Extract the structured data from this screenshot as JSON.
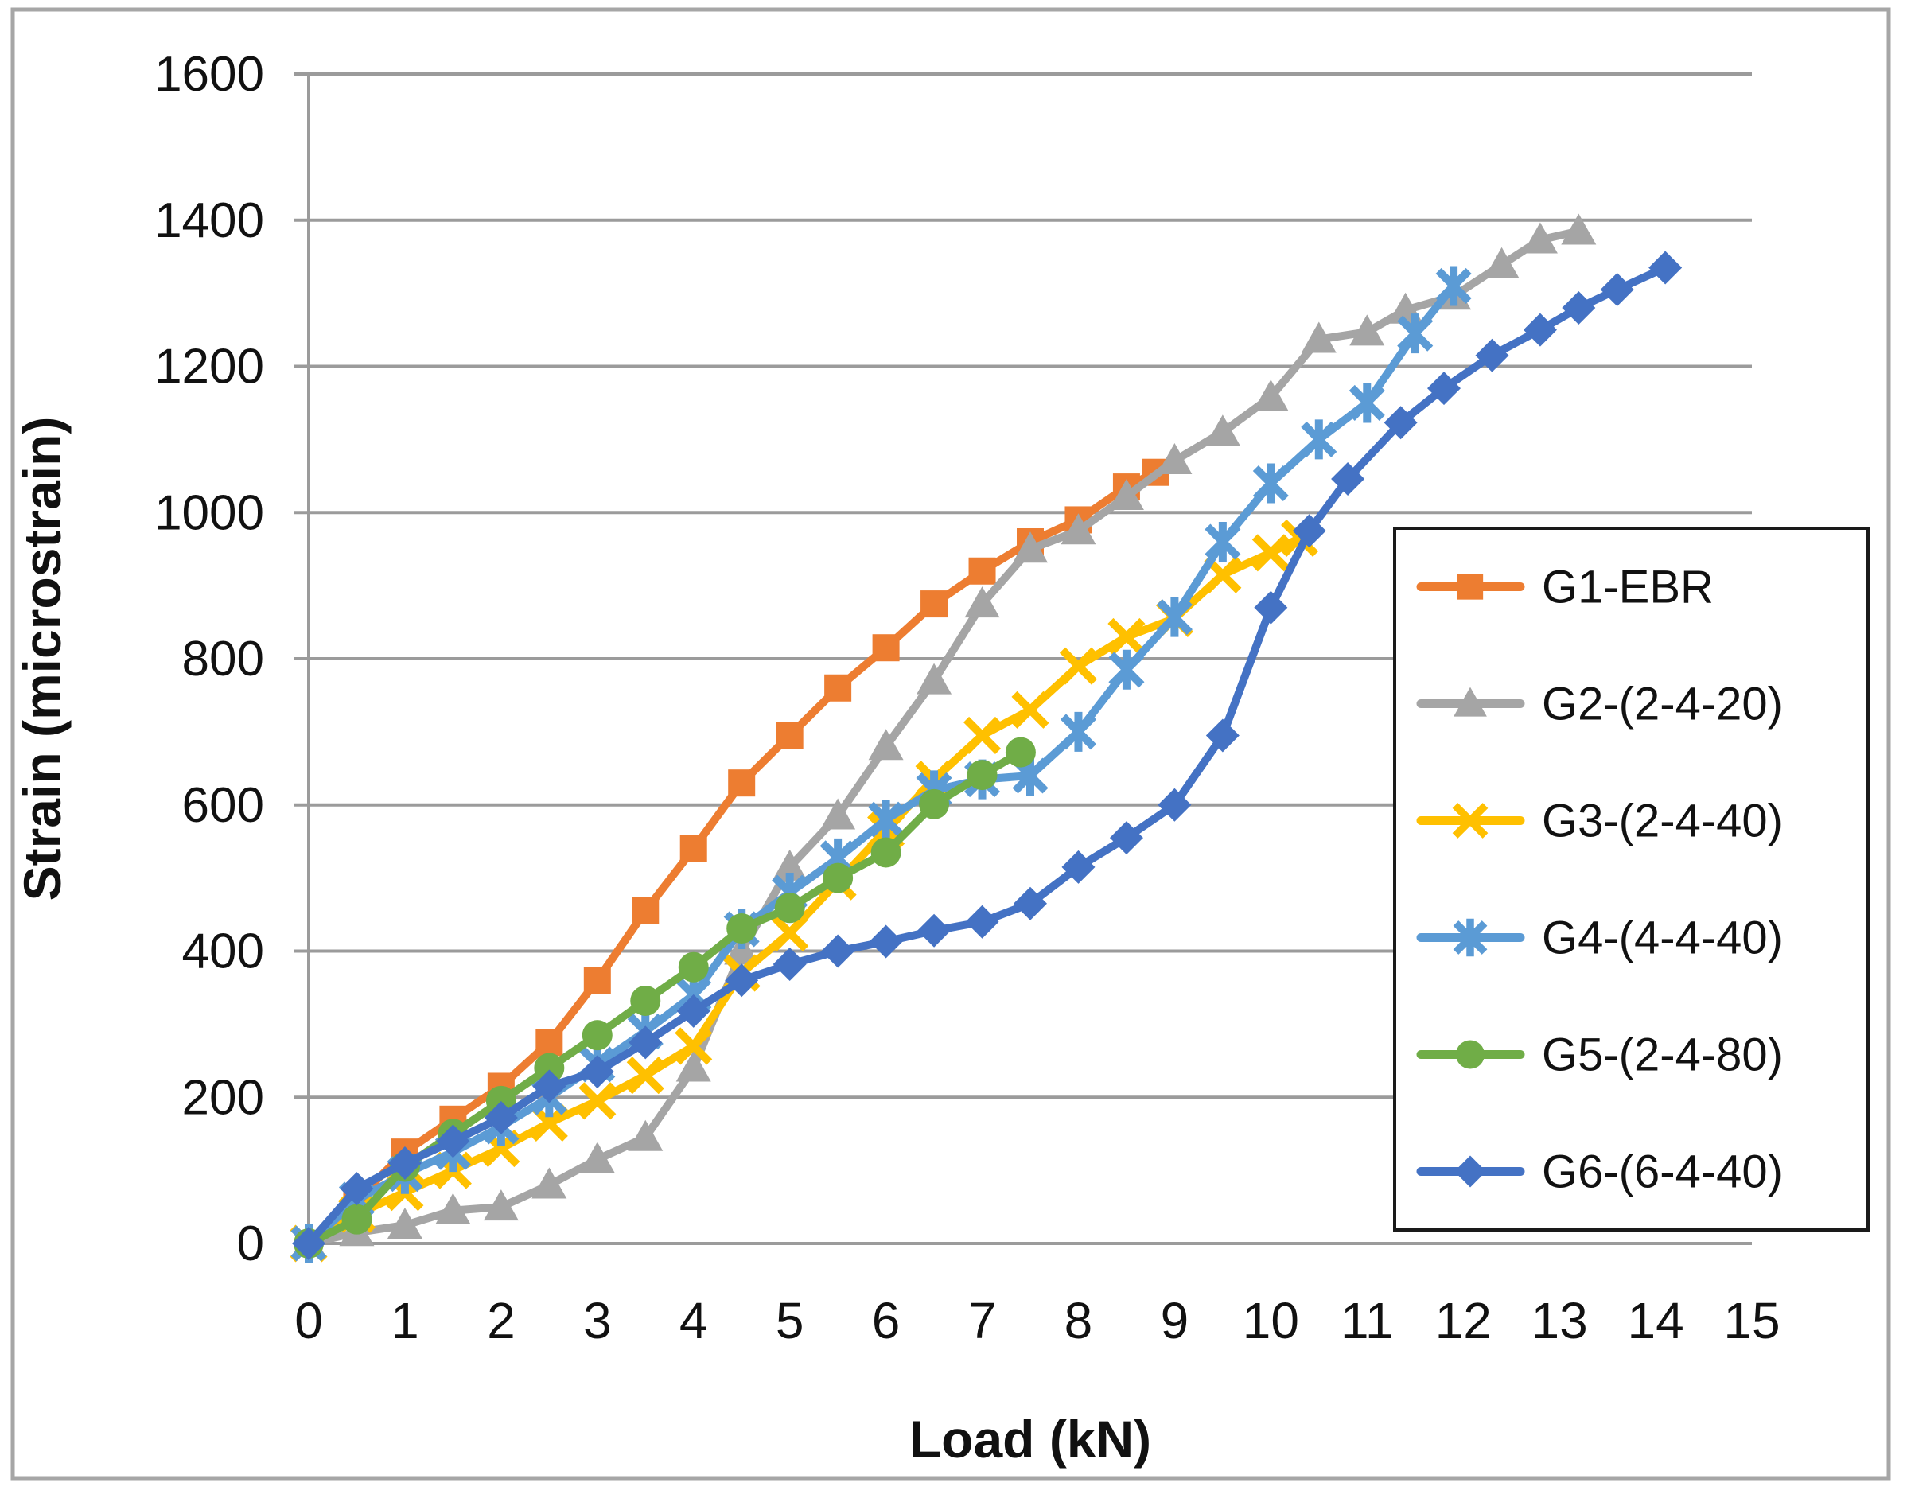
{
  "figure": {
    "background": "#ffffff",
    "outer_border_color": "#a6a6a6",
    "axis_color": "#9b9b9b",
    "grid_color": "#9b9b9b",
    "text_color": "#111111",
    "legend_border_color": "#1a1a1a"
  },
  "chart_data": {
    "type": "line",
    "title": "",
    "xlabel": "Load (kN)",
    "ylabel": "Strain (microstrain)",
    "xlim": [
      0,
      15
    ],
    "ylim": [
      0,
      1600
    ],
    "x_ticks": [
      0,
      1,
      2,
      3,
      4,
      5,
      6,
      7,
      8,
      9,
      10,
      11,
      12,
      13,
      14,
      15
    ],
    "y_ticks": [
      0,
      200,
      400,
      600,
      800,
      1000,
      1200,
      1400,
      1600
    ],
    "grid": true,
    "legend_position": "right-middle",
    "series": [
      {
        "name": "G1-EBR",
        "color": "#ED7D31",
        "marker": "square",
        "x": [
          0,
          0.5,
          1,
          1.5,
          2,
          2.5,
          3,
          3.5,
          4,
          4.5,
          5,
          5.5,
          6,
          6.5,
          7,
          7.5,
          8,
          8.5,
          8.8
        ],
        "y": [
          0,
          60,
          125,
          170,
          215,
          275,
          360,
          455,
          540,
          630,
          695,
          760,
          815,
          875,
          920,
          960,
          990,
          1035,
          1055
        ]
      },
      {
        "name": "G2-(2-4-20)",
        "color": "#A5A5A5",
        "marker": "triangle",
        "x": [
          0,
          0.5,
          1,
          1.5,
          2,
          2.5,
          3,
          3.5,
          4,
          4.5,
          5,
          5.5,
          6,
          6.5,
          7,
          7.5,
          8,
          8.5,
          9,
          9.5,
          10,
          10.5,
          11,
          11.4,
          11.9,
          12.4,
          12.8,
          13.2
        ],
        "y": [
          0,
          15,
          25,
          45,
          50,
          80,
          115,
          145,
          240,
          400,
          515,
          585,
          680,
          770,
          875,
          950,
          975,
          1022,
          1071,
          1110,
          1158,
          1237,
          1247,
          1277,
          1296,
          1339,
          1373,
          1385
        ]
      },
      {
        "name": "G3-(2-4-40)",
        "color": "#FFC000",
        "marker": "x",
        "x": [
          0,
          0.5,
          1,
          1.5,
          2,
          2.5,
          3,
          3.5,
          4,
          4.5,
          5,
          5.5,
          6,
          6.5,
          7,
          7.5,
          8,
          8.5,
          9,
          9.5,
          10,
          10.3
        ],
        "y": [
          0,
          40,
          70,
          100,
          130,
          165,
          195,
          230,
          270,
          370,
          425,
          495,
          565,
          635,
          695,
          730,
          790,
          830,
          855,
          915,
          945,
          965
        ]
      },
      {
        "name": "G4-(4-4-40)",
        "color": "#5B9BD5",
        "marker": "star",
        "x": [
          0,
          0.5,
          1,
          1.5,
          2,
          2.5,
          3,
          3.5,
          4,
          4.5,
          5,
          5.5,
          6,
          6.5,
          7,
          7.5,
          8,
          8.5,
          9,
          9.5,
          10,
          10.5,
          11,
          11.5,
          11.9
        ],
        "y": [
          0,
          60,
          95,
          125,
          160,
          200,
          245,
          290,
          340,
          430,
          480,
          527,
          580,
          620,
          635,
          640,
          700,
          785,
          857,
          960,
          1040,
          1100,
          1150,
          1245,
          1310
        ]
      },
      {
        "name": "G5-(2-4-80)",
        "color": "#70AD47",
        "marker": "circle",
        "x": [
          0,
          0.5,
          1,
          1.5,
          2,
          2.5,
          3,
          3.5,
          4,
          4.5,
          5,
          5.5,
          6,
          6.5,
          7,
          7.4
        ],
        "y": [
          0,
          33,
          105,
          150,
          195,
          240,
          285,
          332,
          378,
          431,
          459,
          500,
          535,
          601,
          641,
          672
        ]
      },
      {
        "name": "G6-(6-4-40)",
        "color": "#4472C4",
        "marker": "diamond",
        "x": [
          0,
          0.5,
          1,
          1.5,
          2,
          2.5,
          3,
          3.5,
          4,
          4.5,
          5,
          5.5,
          6,
          6.5,
          7,
          7.5,
          8,
          8.5,
          9,
          9.5,
          10,
          10.4,
          10.8,
          11.35,
          11.8,
          12.3,
          12.8,
          13.2,
          13.6,
          14.1
        ],
        "y": [
          0,
          75,
          110,
          140,
          172,
          215,
          235,
          275,
          318,
          360,
          382,
          400,
          413,
          428,
          440,
          465,
          515,
          555,
          600,
          695,
          870,
          975,
          1046,
          1123,
          1170,
          1215,
          1250,
          1280,
          1305,
          1335
        ]
      }
    ]
  }
}
